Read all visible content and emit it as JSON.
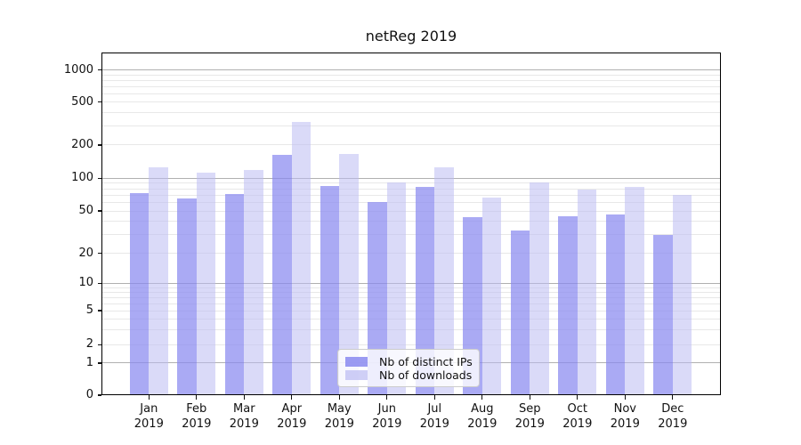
{
  "title": "netReg 2019",
  "chart_data": {
    "type": "bar",
    "title": "netReg 2019",
    "categories": [
      "Jan",
      "Feb",
      "Mar",
      "Apr",
      "May",
      "Jun",
      "Jul",
      "Aug",
      "Sep",
      "Oct",
      "Nov",
      "Dec"
    ],
    "year_label": "2019",
    "series": [
      {
        "name": "Nb of distinct IPs",
        "color": "#8989f0",
        "alpha": 0.72,
        "values": [
          73,
          65,
          72,
          162,
          85,
          60,
          83,
          44,
          33,
          45,
          46,
          30
        ]
      },
      {
        "name": "Nb of downloads",
        "color": "#bbbbf2",
        "alpha": 0.55,
        "values": [
          125,
          112,
          120,
          325,
          167,
          92,
          125,
          66,
          92,
          79,
          83,
          70
        ]
      }
    ],
    "yscale": "log-like (symlog with 0 baseline)",
    "y_ticks": [
      0,
      1,
      2,
      5,
      10,
      20,
      50,
      100,
      200,
      500,
      1000
    ],
    "y_minor_ticks": [
      3,
      4,
      6,
      7,
      8,
      9,
      30,
      40,
      60,
      70,
      80,
      90,
      300,
      400,
      600,
      700,
      800,
      900
    ],
    "ylim": [
      0,
      1450
    ],
    "xlabel": "",
    "ylabel": "",
    "grid": true,
    "legend_position": "lower center",
    "colors": {
      "grid_major": "#b0b0b0",
      "grid_minor": "#e8e8e8",
      "spine": "#000000",
      "legend_border": "#cccccc"
    }
  }
}
